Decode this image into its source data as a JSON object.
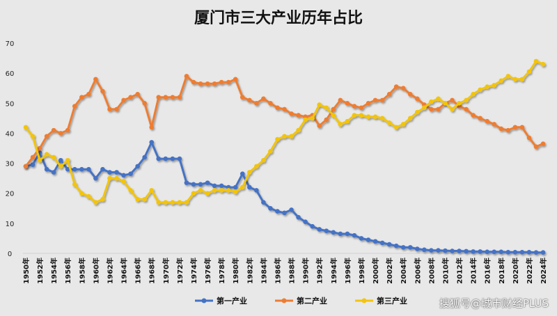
{
  "chart_data": {
    "type": "line",
    "title": "厦门市三大产业历年占比",
    "xlabel": "",
    "ylabel": "",
    "ylim": [
      0,
      70
    ],
    "yticks": [
      0,
      10,
      20,
      30,
      40,
      50,
      60,
      70
    ],
    "x_start": 1950,
    "x_end": 2024,
    "x_tick_suffix": "年",
    "x_tick_step": 2,
    "grid": false,
    "legend_position": "bottom",
    "series": [
      {
        "name": "第一产业",
        "color": "#4472c4",
        "values": [
          29,
          29.5,
          33.5,
          28,
          27,
          31,
          28,
          28,
          28,
          28,
          25,
          28,
          27,
          27,
          26,
          26.5,
          29,
          32,
          37,
          31.5,
          31.5,
          31.5,
          31.5,
          23.5,
          23,
          23,
          23.5,
          22.5,
          22.5,
          22,
          22,
          26.5,
          22,
          21,
          17,
          15,
          14,
          13.5,
          14.5,
          12,
          10.5,
          9,
          8,
          7.5,
          7,
          6.5,
          6.5,
          6,
          5,
          4.5,
          4,
          3.5,
          3,
          2.5,
          2,
          2,
          1.5,
          1.2,
          1,
          1,
          0.9,
          0.8,
          0.8,
          0.7,
          0.6,
          0.6,
          0.5,
          0.5,
          0.5,
          0.4,
          0.4,
          0.4,
          0.4,
          0.3,
          0.3
        ]
      },
      {
        "name": "第二产业",
        "color": "#ed7d31",
        "values": [
          29,
          32,
          35,
          39,
          41,
          40,
          41,
          49,
          52,
          53,
          58,
          54,
          48,
          48,
          51,
          52,
          53,
          50,
          42,
          52,
          52,
          52,
          52,
          59,
          57,
          56.5,
          56.5,
          56.5,
          57,
          57,
          58,
          52,
          51,
          50,
          51.5,
          50,
          48.5,
          48,
          46.5,
          46,
          45.5,
          46,
          42.5,
          44.5,
          48,
          51,
          50,
          49,
          48.5,
          50,
          51,
          51,
          53,
          55.5,
          55,
          53,
          51.5,
          49.5,
          48,
          48,
          50,
          51,
          49,
          48,
          46,
          45,
          44,
          43,
          41.5,
          41,
          42,
          42,
          38.5,
          35.5,
          36.5
        ]
      },
      {
        "name": "第三产业",
        "color": "#f2c40f",
        "values": [
          42,
          39,
          31,
          33,
          32,
          29,
          31,
          23,
          20,
          19,
          17,
          18,
          25,
          25,
          24,
          21,
          18,
          18,
          21,
          17,
          17,
          17,
          17,
          17,
          20,
          21,
          20,
          21,
          21,
          21,
          20.5,
          22,
          27,
          29,
          31,
          34,
          38,
          39,
          39,
          41,
          44.5,
          45,
          49.5,
          48.5,
          46,
          43,
          44,
          46,
          46,
          45.5,
          45.5,
          45,
          43.5,
          42,
          43,
          45,
          47,
          48.5,
          50.5,
          51.5,
          50,
          48,
          50,
          51,
          53,
          54.5,
          55.5,
          56,
          57.5,
          59,
          58,
          58,
          60.5,
          64,
          63
        ]
      }
    ]
  },
  "watermark": "搜狐号@城市财经PLUS"
}
